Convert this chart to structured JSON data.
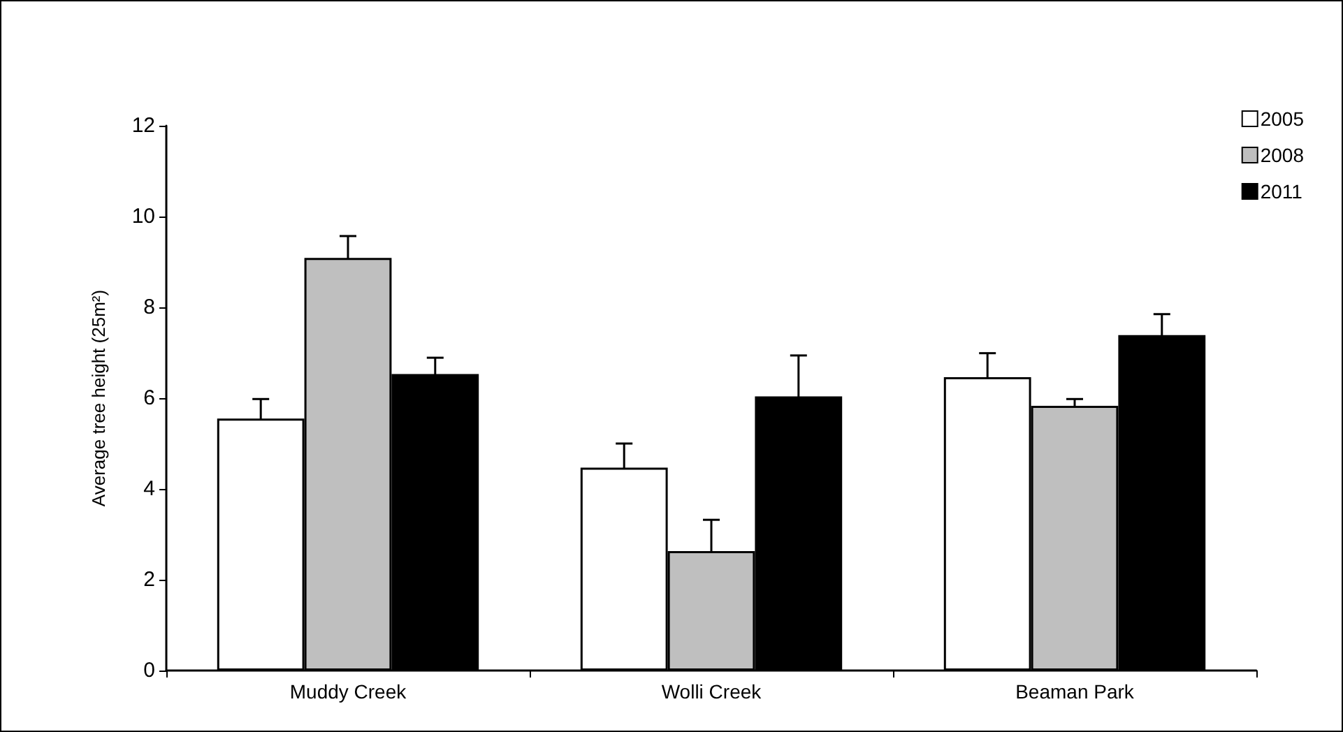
{
  "chart_data": {
    "type": "bar",
    "ylabel": "Average tree height (25m²)",
    "categories": [
      "Muddy Creek",
      "Wolli Creek",
      "Beaman Park"
    ],
    "series": [
      {
        "name": "2005",
        "color": "#ffffff",
        "values": [
          5.55,
          4.47,
          6.46
        ],
        "errors": [
          0.43,
          0.53,
          0.53
        ]
      },
      {
        "name": "2008",
        "color": "#bfbfbf",
        "values": [
          9.09,
          2.63,
          5.83
        ],
        "errors": [
          0.48,
          0.69,
          0.15
        ]
      },
      {
        "name": "2011",
        "color": "#000000",
        "values": [
          6.53,
          6.04,
          7.39
        ],
        "errors": [
          0.36,
          0.9,
          0.46
        ]
      }
    ],
    "ylim": [
      0,
      12
    ],
    "yticks": [
      0,
      2,
      4,
      6,
      8,
      10,
      12
    ],
    "grid": false,
    "legend": "top right"
  }
}
